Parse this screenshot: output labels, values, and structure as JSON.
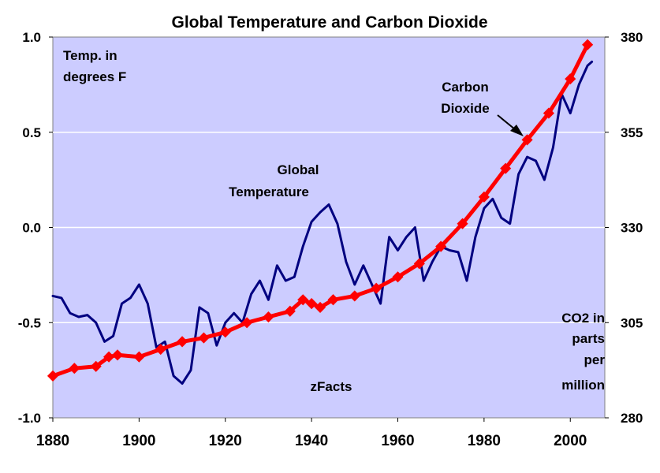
{
  "chart_data": {
    "type": "line",
    "title": "Global Temperature and Carbon Dioxide",
    "xlim": [
      1880,
      2008
    ],
    "x_ticks": [
      "1880",
      "1900",
      "1920",
      "1940",
      "1960",
      "1980",
      "2000"
    ],
    "y_left": {
      "lim": [
        -1.0,
        1.0
      ],
      "ticks": [
        "1.0",
        "0.5",
        "0.0",
        "-0.5",
        "-1.0"
      ]
    },
    "y_right": {
      "lim": [
        280,
        380
      ],
      "ticks": [
        "380",
        "355",
        "330",
        "305",
        "280"
      ]
    },
    "grid": "horizontal",
    "plot_background": "#CCCCFF",
    "annotations": {
      "temp_unit": [
        "Temp. in",
        "degrees F"
      ],
      "co2_label": [
        "Carbon",
        "Dioxide"
      ],
      "temp_label": [
        "Global",
        "Temperature"
      ],
      "co2_unit": [
        "CO2 in",
        "parts",
        "per",
        "million"
      ],
      "source": "zFacts"
    },
    "series": [
      {
        "axis": "left",
        "color": "#000080",
        "x": [
          1880,
          1882,
          1884,
          1886,
          1888,
          1890,
          1892,
          1894,
          1896,
          1898,
          1900,
          1902,
          1904,
          1906,
          1908,
          1910,
          1912,
          1914,
          1916,
          1918,
          1920,
          1922,
          1924,
          1926,
          1928,
          1930,
          1932,
          1934,
          1936,
          1938,
          1940,
          1942,
          1944,
          1946,
          1948,
          1950,
          1952,
          1954,
          1956,
          1958,
          1960,
          1962,
          1964,
          1966,
          1968,
          1970,
          1972,
          1974,
          1976,
          1978,
          1980,
          1982,
          1984,
          1986,
          1988,
          1990,
          1992,
          1994,
          1996,
          1998,
          2000,
          2002,
          2004,
          2005
        ],
        "values": [
          -0.36,
          -0.37,
          -0.45,
          -0.47,
          -0.46,
          -0.5,
          -0.6,
          -0.57,
          -0.4,
          -0.37,
          -0.3,
          -0.4,
          -0.63,
          -0.6,
          -0.78,
          -0.82,
          -0.75,
          -0.42,
          -0.45,
          -0.62,
          -0.5,
          -0.45,
          -0.5,
          -0.35,
          -0.28,
          -0.38,
          -0.2,
          -0.28,
          -0.26,
          -0.1,
          0.03,
          0.08,
          0.12,
          0.02,
          -0.18,
          -0.3,
          -0.2,
          -0.3,
          -0.4,
          -0.05,
          -0.12,
          -0.05,
          0.0,
          -0.28,
          -0.18,
          -0.1,
          -0.12,
          -0.13,
          -0.28,
          -0.05,
          0.1,
          0.15,
          0.05,
          0.02,
          0.28,
          0.37,
          0.35,
          0.25,
          0.42,
          0.7,
          0.6,
          0.75,
          0.85,
          0.87
        ]
      },
      {
        "axis": "right",
        "color": "#FF0000",
        "x": [
          1880,
          1885,
          1890,
          1893,
          1895,
          1900,
          1905,
          1910,
          1915,
          1920,
          1925,
          1930,
          1935,
          1938,
          1940,
          1942,
          1945,
          1950,
          1955,
          1960,
          1965,
          1970,
          1975,
          1980,
          1985,
          1990,
          1995,
          2000,
          2004
        ],
        "values": [
          291,
          293,
          293.5,
          296,
          296.5,
          296,
          298,
          300,
          301,
          302.5,
          305,
          306.5,
          308,
          311,
          310,
          309,
          311,
          312,
          314,
          317,
          320.5,
          325,
          331,
          338,
          345.5,
          353,
          360,
          369,
          378
        ]
      }
    ]
  }
}
